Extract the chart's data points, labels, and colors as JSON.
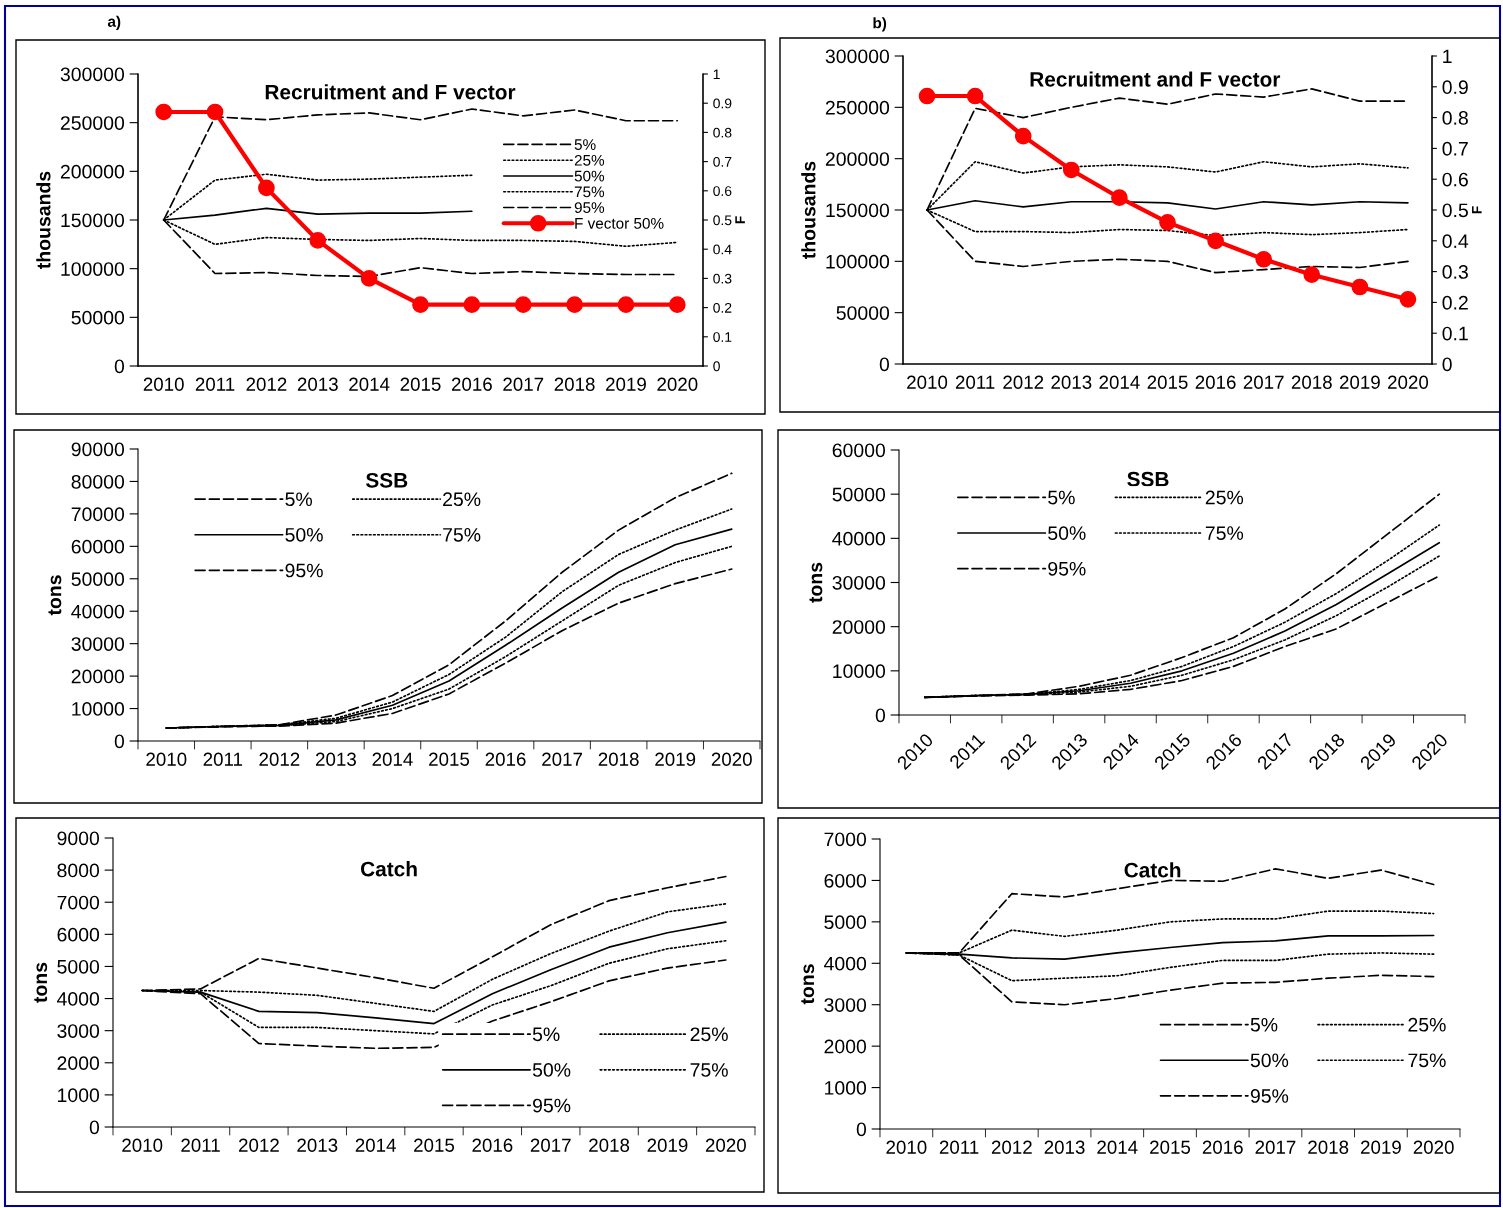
{
  "chart_data": [
    {
      "type": "line",
      "title": "Recruitment and F vector",
      "ylabel": "thousands",
      "y2label": "F",
      "annotations": [
        "a)"
      ],
      "legend": "top right",
      "categories": [
        "2010",
        "2011",
        "2012",
        "2013",
        "2014",
        "2015",
        "2016",
        "2017",
        "2018",
        "2019",
        "2020"
      ],
      "ylim": [
        0,
        300000
      ],
      "yticks": [
        0,
        50000,
        100000,
        150000,
        200000,
        250000,
        300000
      ],
      "y2lim": [
        0,
        1
      ],
      "y2ticks": [
        0,
        0.1,
        0.2,
        0.3,
        0.4,
        0.5,
        0.6,
        0.7,
        0.8,
        0.9,
        1
      ],
      "series": [
        {
          "name": "5%",
          "color": "#000000",
          "line_style": "dashed",
          "values": [
            150000,
            95000,
            96000,
            93000,
            92000,
            101000,
            95000,
            97000,
            95000,
            94000,
            94000
          ]
        },
        {
          "name": "25%",
          "color": "#000000",
          "line_style": "dotted",
          "values": [
            150000,
            125000,
            132000,
            130000,
            129000,
            131000,
            129000,
            129000,
            128000,
            123000,
            127000
          ]
        },
        {
          "name": "50%",
          "color": "#000000",
          "line_style": "solid",
          "values": [
            150000,
            155000,
            162000,
            156000,
            157000,
            157000,
            159000,
            null,
            null,
            null,
            null
          ]
        },
        {
          "name": "75%",
          "color": "#000000",
          "line_style": "dotted",
          "values": [
            150000,
            191000,
            197000,
            191000,
            192000,
            194000,
            196000,
            null,
            null,
            null,
            null
          ]
        },
        {
          "name": "95%",
          "color": "#000000",
          "line_style": "dashed",
          "values": [
            150000,
            256000,
            253000,
            258000,
            260000,
            253000,
            264000,
            257000,
            263000,
            252000,
            252000
          ]
        },
        {
          "name": "F vector 50%",
          "color": "#ff0000",
          "line_style": "solid",
          "marker": "circle",
          "axis": "y2",
          "values": [
            0.87,
            0.87,
            0.61,
            0.43,
            0.3,
            0.21,
            0.21,
            0.21,
            0.21,
            0.21,
            0.21
          ]
        }
      ]
    },
    {
      "type": "line",
      "title": "Recruitment and F vector",
      "ylabel": "thousands",
      "y2label": "F",
      "annotations": [
        "b)"
      ],
      "categories": [
        "2010",
        "2011",
        "2012",
        "2013",
        "2014",
        "2015",
        "2016",
        "2017",
        "2018",
        "2019",
        "2020"
      ],
      "ylim": [
        0,
        300000
      ],
      "yticks": [
        0,
        50000,
        100000,
        150000,
        200000,
        250000,
        300000
      ],
      "y2lim": [
        0,
        1
      ],
      "y2ticks": [
        0,
        0.1,
        0.2,
        0.3,
        0.4,
        0.5,
        0.6,
        0.7,
        0.8,
        0.9,
        1
      ],
      "series": [
        {
          "color": "#000000",
          "line_style": "dashed",
          "values": [
            150000,
            100000,
            95000,
            100000,
            102000,
            100000,
            89000,
            92000,
            95000,
            94000,
            100000
          ]
        },
        {
          "color": "#000000",
          "line_style": "dotted",
          "values": [
            150000,
            129000,
            129000,
            128000,
            131000,
            130000,
            125000,
            128000,
            126000,
            128000,
            131000
          ]
        },
        {
          "color": "#000000",
          "line_style": "solid",
          "values": [
            150000,
            159000,
            153000,
            158000,
            158000,
            157000,
            151000,
            158000,
            155000,
            158000,
            157000
          ]
        },
        {
          "color": "#000000",
          "line_style": "dotted",
          "values": [
            150000,
            197000,
            186000,
            192000,
            194000,
            192000,
            187000,
            197000,
            192000,
            195000,
            191000
          ]
        },
        {
          "color": "#000000",
          "line_style": "dashed",
          "values": [
            150000,
            249000,
            240000,
            250000,
            259000,
            253000,
            263000,
            260000,
            268000,
            256000,
            256000
          ]
        },
        {
          "color": "#ff0000",
          "line_style": "solid",
          "marker": "circle",
          "axis": "y2",
          "values": [
            0.87,
            0.87,
            0.74,
            0.63,
            0.54,
            0.46,
            0.4,
            0.34,
            0.29,
            0.25,
            0.21
          ]
        }
      ]
    },
    {
      "type": "line",
      "title": "SSB",
      "ylabel": "tons",
      "legend": "top left",
      "categories": [
        "2010",
        "2011",
        "2012",
        "2013",
        "2014",
        "2015",
        "2016",
        "2017",
        "2018",
        "2019",
        "2020"
      ],
      "ylim": [
        0,
        90000
      ],
      "yticks": [
        0,
        10000,
        20000,
        30000,
        40000,
        50000,
        60000,
        70000,
        80000,
        90000
      ],
      "series": [
        {
          "name": "5%",
          "color": "#000000",
          "line_style": "dashed",
          "values": [
            4000,
            4400,
            4600,
            5500,
            8500,
            14500,
            24000,
            34000,
            42500,
            48500,
            53000
          ]
        },
        {
          "name": "25%",
          "color": "#000000",
          "line_style": "dotted",
          "values": [
            4000,
            4500,
            4700,
            6000,
            10000,
            16000,
            26000,
            37000,
            48000,
            55000,
            60000
          ]
        },
        {
          "name": "50%",
          "color": "#000000",
          "line_style": "solid",
          "values": [
            4000,
            4500,
            4800,
            6500,
            11000,
            18500,
            29500,
            41000,
            52000,
            60500,
            65300
          ]
        },
        {
          "name": "75%",
          "color": "#000000",
          "line_style": "dotted",
          "values": [
            4000,
            4500,
            5000,
            7000,
            12000,
            20500,
            32000,
            46000,
            57500,
            65000,
            71500
          ]
        },
        {
          "name": "95%",
          "color": "#000000",
          "line_style": "dashed",
          "values": [
            4000,
            4500,
            5000,
            8000,
            14000,
            23500,
            37000,
            52000,
            65000,
            75000,
            82500
          ]
        }
      ]
    },
    {
      "type": "line",
      "title": "SSB",
      "ylabel": "tons",
      "legend": "top left",
      "categories": [
        "2010",
        "2011",
        "2012",
        "2013",
        "2014",
        "2015",
        "2016",
        "2017",
        "2018",
        "2019",
        "2020"
      ],
      "ylim": [
        0,
        60000
      ],
      "yticks": [
        0,
        10000,
        20000,
        30000,
        40000,
        50000,
        60000
      ],
      "series": [
        {
          "name": "5%",
          "color": "#000000",
          "line_style": "dashed",
          "values": [
            4000,
            4300,
            4500,
            4800,
            5800,
            7800,
            11000,
            15500,
            19500,
            25500,
            31500
          ]
        },
        {
          "name": "25%",
          "color": "#000000",
          "line_style": "dotted",
          "values": [
            4000,
            4400,
            4600,
            5200,
            6500,
            9000,
            12500,
            17000,
            22500,
            29000,
            36000
          ]
        },
        {
          "name": "50%",
          "color": "#000000",
          "line_style": "solid",
          "values": [
            4000,
            4400,
            4700,
            5500,
            7200,
            10000,
            14000,
            19000,
            25000,
            32000,
            39000
          ]
        },
        {
          "name": "75%",
          "color": "#000000",
          "line_style": "dotted",
          "values": [
            4000,
            4400,
            4700,
            5800,
            7800,
            11000,
            15500,
            21000,
            27500,
            35000,
            43000
          ]
        },
        {
          "name": "95%",
          "color": "#000000",
          "line_style": "dashed",
          "values": [
            4000,
            4400,
            4800,
            6500,
            9000,
            13000,
            17500,
            24000,
            32000,
            41000,
            50000
          ]
        }
      ]
    },
    {
      "type": "line",
      "title": "Catch",
      "ylabel": "tons",
      "legend": "bottom right",
      "categories": [
        "2010",
        "2011",
        "2012",
        "2013",
        "2014",
        "2015",
        "2016",
        "2017",
        "2018",
        "2019",
        "2020"
      ],
      "ylim": [
        0,
        9000
      ],
      "yticks": [
        0,
        1000,
        2000,
        3000,
        4000,
        5000,
        6000,
        7000,
        8000,
        9000
      ],
      "series": [
        {
          "name": "5%",
          "color": "#000000",
          "line_style": "dashed",
          "values": [
            4250,
            4150,
            2600,
            2520,
            2450,
            2480,
            3300,
            3900,
            4550,
            4950,
            5200
          ]
        },
        {
          "name": "25%",
          "color": "#000000",
          "line_style": "dotted",
          "values": [
            4250,
            4200,
            3100,
            3100,
            3000,
            2900,
            3800,
            4400,
            5100,
            5550,
            5800
          ]
        },
        {
          "name": "50%",
          "color": "#000000",
          "line_style": "solid",
          "values": [
            4250,
            4200,
            3600,
            3560,
            3400,
            3220,
            4150,
            4900,
            5600,
            6050,
            6380
          ]
        },
        {
          "name": "75%",
          "color": "#000000",
          "line_style": "dotted",
          "values": [
            4250,
            4250,
            4200,
            4100,
            3850,
            3600,
            4600,
            5400,
            6100,
            6700,
            6950
          ]
        },
        {
          "name": "95%",
          "color": "#000000",
          "line_style": "dashed",
          "values": [
            4250,
            4300,
            5250,
            4950,
            4650,
            4320,
            5300,
            6300,
            7050,
            7450,
            7800
          ]
        }
      ]
    },
    {
      "type": "line",
      "title": "Catch",
      "ylabel": "tons",
      "legend": "bottom right",
      "categories": [
        "2010",
        "2011",
        "2012",
        "2013",
        "2014",
        "2015",
        "2016",
        "2017",
        "2018",
        "2019",
        "2020"
      ],
      "ylim": [
        0,
        7000
      ],
      "yticks": [
        0,
        1000,
        2000,
        3000,
        4000,
        5000,
        6000,
        7000
      ],
      "series": [
        {
          "name": "5%",
          "color": "#000000",
          "line_style": "dashed",
          "values": [
            4250,
            4200,
            3070,
            3000,
            3150,
            3350,
            3520,
            3540,
            3640,
            3710,
            3680
          ]
        },
        {
          "name": "25%",
          "color": "#000000",
          "line_style": "dotted",
          "values": [
            4250,
            4200,
            3580,
            3640,
            3700,
            3900,
            4070,
            4070,
            4220,
            4250,
            4220
          ]
        },
        {
          "name": "50%",
          "color": "#000000",
          "line_style": "solid",
          "values": [
            4250,
            4220,
            4130,
            4100,
            4250,
            4380,
            4500,
            4540,
            4660,
            4660,
            4670
          ]
        },
        {
          "name": "75%",
          "color": "#000000",
          "line_style": "dotted",
          "values": [
            4250,
            4250,
            4800,
            4650,
            4800,
            5000,
            5070,
            5070,
            5260,
            5260,
            5200
          ]
        },
        {
          "name": "95%",
          "color": "#000000",
          "line_style": "dashed",
          "values": [
            4250,
            4250,
            5680,
            5600,
            5800,
            6000,
            5980,
            6280,
            6050,
            6250,
            5900
          ]
        }
      ]
    }
  ]
}
